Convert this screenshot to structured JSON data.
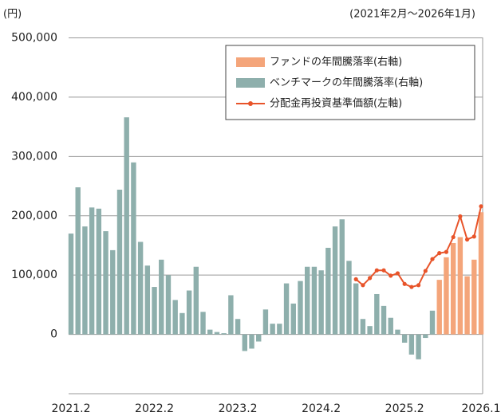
{
  "chart_data": {
    "type": "bar-line",
    "y_unit_label": "(円)",
    "period_label": "(2021年2月〜2026年1月)",
    "categories": [
      "2021.2",
      null,
      null,
      null,
      null,
      null,
      null,
      null,
      null,
      null,
      null,
      null,
      "2022.2",
      null,
      null,
      null,
      null,
      null,
      null,
      null,
      null,
      null,
      null,
      null,
      "2023.2",
      null,
      null,
      null,
      null,
      null,
      null,
      null,
      null,
      null,
      null,
      null,
      "2024.2",
      null,
      null,
      null,
      null,
      null,
      null,
      null,
      null,
      null,
      null,
      null,
      "2025.2",
      null,
      null,
      null,
      null,
      null,
      null,
      null,
      null,
      null,
      null,
      "2026.1"
    ],
    "ylim": [
      -100000,
      500000
    ],
    "yticks": [
      {
        "value": 0,
        "label": "0"
      },
      {
        "value": 100000,
        "label": "100,000"
      },
      {
        "value": 200000,
        "label": "200,000"
      },
      {
        "value": 300000,
        "label": "300,000"
      },
      {
        "value": 400000,
        "label": "400,000"
      },
      {
        "value": 500000,
        "label": "500,000"
      }
    ],
    "y2lim": [
      -5,
      25
    ],
    "grid": true,
    "legend": "upper right",
    "series": [
      {
        "name": "ファンドの年間騰落率(右軸)",
        "type": "bar",
        "axis": "y2",
        "color": "#f4a57a",
        "values": [
          null,
          null,
          null,
          null,
          null,
          null,
          null,
          null,
          null,
          null,
          null,
          null,
          null,
          null,
          null,
          null,
          null,
          null,
          null,
          null,
          null,
          null,
          null,
          null,
          null,
          null,
          null,
          null,
          null,
          null,
          null,
          null,
          null,
          null,
          null,
          null,
          null,
          null,
          null,
          null,
          null,
          null,
          null,
          null,
          null,
          null,
          null,
          null,
          null,
          null,
          null,
          null,
          null,
          4.6,
          6.5,
          7.7,
          8.2,
          4.9,
          6.3,
          10.3
        ]
      },
      {
        "name": "ベンチマークの年間騰落率(右軸)",
        "type": "bar",
        "axis": "y2",
        "color": "#8eafac",
        "values": [
          8.5,
          12.4,
          9.1,
          10.7,
          10.6,
          8.7,
          7.1,
          12.2,
          18.3,
          14.5,
          7.8,
          5.8,
          4.0,
          6.3,
          5.0,
          2.9,
          1.8,
          3.7,
          5.7,
          1.9,
          0.4,
          0.2,
          0.1,
          3.3,
          1.3,
          -1.4,
          -1.2,
          -0.6,
          2.1,
          0.9,
          0.9,
          4.3,
          2.6,
          4.5,
          5.7,
          5.7,
          5.4,
          7.3,
          9.1,
          9.7,
          6.2,
          4.3,
          1.3,
          0.7,
          3.4,
          2.4,
          1.4,
          0.4,
          -0.7,
          -1.7,
          -2.1,
          -0.3,
          2.0,
          null,
          null,
          null,
          null,
          null,
          null,
          null
        ]
      },
      {
        "name": "分配金再投資基準価額(左軸)",
        "type": "line",
        "color": "#e8542a",
        "values": [
          null,
          null,
          null,
          null,
          null,
          null,
          null,
          null,
          null,
          null,
          null,
          null,
          null,
          null,
          null,
          null,
          null,
          null,
          null,
          null,
          null,
          null,
          null,
          null,
          null,
          null,
          null,
          null,
          null,
          null,
          null,
          null,
          null,
          null,
          null,
          null,
          null,
          null,
          null,
          null,
          null,
          93000,
          83000,
          95000,
          108000,
          108000,
          99000,
          103000,
          85000,
          80000,
          83000,
          107000,
          127000,
          137000,
          139000,
          164000,
          199000,
          160000,
          165000,
          216000
        ]
      }
    ]
  }
}
